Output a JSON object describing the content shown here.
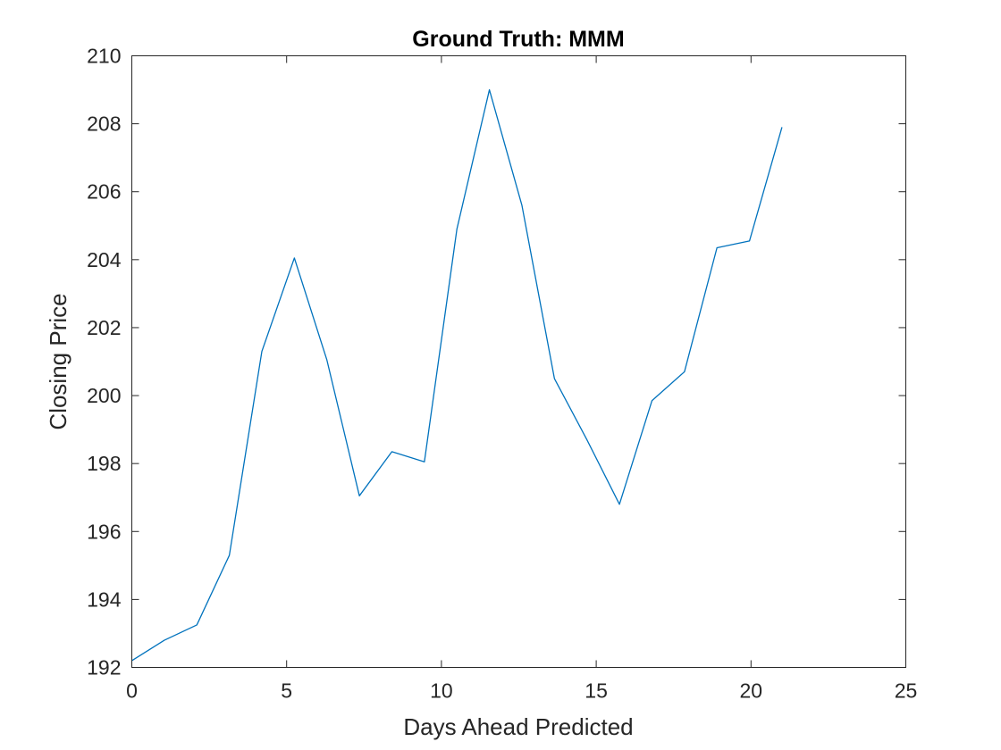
{
  "chart_data": {
    "type": "line",
    "title": "Ground Truth: MMM",
    "xlabel": "Days Ahead Predicted",
    "ylabel": "Closing Price",
    "xlim": [
      0,
      25
    ],
    "ylim": [
      192,
      210
    ],
    "xticks": [
      0,
      5,
      10,
      15,
      20,
      25
    ],
    "yticks": [
      192,
      194,
      196,
      198,
      200,
      202,
      204,
      206,
      208,
      210
    ],
    "grid": false,
    "legend": "none",
    "series": [
      {
        "color": "#0072BD",
        "x": [
          0,
          1.05,
          2.1,
          3.15,
          4.2,
          5.25,
          6.3,
          7.35,
          8.4,
          9.45,
          10.5,
          11.55,
          12.6,
          13.65,
          14.7,
          15.75,
          16.8,
          17.85,
          18.9,
          19.95,
          21.0
        ],
        "y": [
          192.2,
          192.8,
          193.25,
          195.3,
          201.3,
          204.05,
          201.05,
          197.05,
          198.35,
          198.05,
          204.9,
          209.0,
          205.6,
          200.5,
          198.7,
          196.8,
          199.85,
          200.7,
          204.35,
          204.55,
          207.9
        ]
      }
    ]
  }
}
